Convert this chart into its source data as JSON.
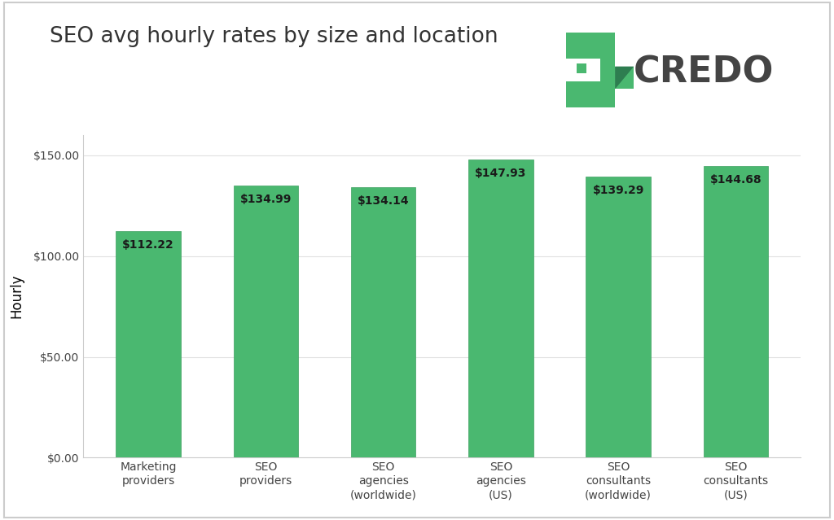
{
  "title": "SEO avg hourly rates by size and location",
  "ylabel": "Hourly",
  "categories": [
    "Marketing\nproviders",
    "SEO\nproviders",
    "SEO\nagencies\n(worldwide)",
    "SEO\nagencies\n(US)",
    "SEO\nconsultants\n(worldwide)",
    "SEO\nconsultants\n(US)"
  ],
  "values": [
    112.22,
    134.99,
    134.14,
    147.93,
    139.29,
    144.68
  ],
  "labels": [
    "$112.22",
    "$134.99",
    "$134.14",
    "$147.93",
    "$139.29",
    "$144.68"
  ],
  "bar_color": "#4ab870",
  "bar_edge_color": "#3da060",
  "ylim": [
    0,
    160
  ],
  "yticks": [
    0,
    50,
    100,
    150
  ],
  "ytick_labels": [
    "$0.00",
    "$50.00",
    "$100.00",
    "$150.00"
  ],
  "background_color": "#ffffff",
  "title_fontsize": 19,
  "ylabel_fontsize": 12,
  "tick_fontsize": 10,
  "bar_label_fontsize": 10,
  "bar_label_color": "#1a1a1a",
  "logo_text": "CREDO",
  "logo_green": "#4ab870",
  "logo_text_color": "#444444",
  "logo_fontsize": 32,
  "border_color": "#cccccc",
  "grid_color": "#e0e0e0",
  "spine_color": "#cccccc"
}
